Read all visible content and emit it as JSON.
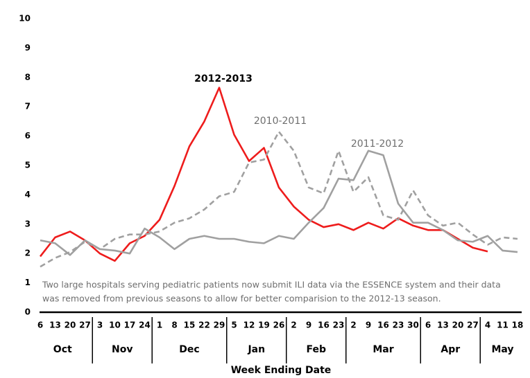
{
  "chart_data": {
    "type": "line",
    "x_label": "Week Ending Date",
    "categories": [
      "6",
      "13",
      "20",
      "27",
      "3",
      "10",
      "17",
      "24",
      "1",
      "8",
      "15",
      "22",
      "29",
      "5",
      "12",
      "19",
      "26",
      "2",
      "9",
      "16",
      "23",
      "2",
      "9",
      "16",
      "23",
      "30",
      "6",
      "13",
      "20",
      "27",
      "4",
      "11",
      "18"
    ],
    "months": [
      "Oct",
      "Nov",
      "Dec",
      "Jan",
      "Feb",
      "Mar",
      "Apr",
      "May"
    ],
    "ylim": [
      0,
      10
    ],
    "yticks": [
      0,
      1,
      2,
      3,
      4,
      5,
      6,
      7,
      8,
      9,
      10
    ],
    "grid": false,
    "series": [
      {
        "name": "2012-2013",
        "color": "#ee1c1c",
        "style": "solid",
        "values": [
          1.9,
          2.55,
          2.75,
          2.45,
          2.0,
          1.75,
          2.35,
          2.6,
          3.15,
          4.3,
          5.65,
          6.5,
          7.65,
          6.05,
          5.15,
          5.6,
          4.25,
          3.6,
          3.15,
          2.9,
          3.0,
          2.8,
          3.05,
          2.85,
          3.2,
          2.95,
          2.8,
          2.8,
          2.5,
          2.2,
          2.07,
          null,
          null
        ]
      },
      {
        "name": "2010-2011",
        "color": "#a0a0a0",
        "style": "dashed",
        "values": [
          1.55,
          1.85,
          2.05,
          2.4,
          2.15,
          2.5,
          2.65,
          2.65,
          2.75,
          3.05,
          3.2,
          3.5,
          3.95,
          4.1,
          5.1,
          5.2,
          6.15,
          5.5,
          4.25,
          4.05,
          5.5,
          4.1,
          4.6,
          3.3,
          3.15,
          4.15,
          3.3,
          2.95,
          3.05,
          2.65,
          2.3,
          2.55,
          2.5
        ]
      },
      {
        "name": "2011-2012",
        "color": "#a0a0a0",
        "style": "solid",
        "values": [
          2.45,
          2.35,
          1.95,
          2.45,
          2.15,
          2.1,
          2.0,
          2.85,
          2.55,
          2.15,
          2.5,
          2.6,
          2.5,
          2.5,
          2.4,
          2.35,
          2.6,
          2.5,
          3.05,
          3.55,
          4.55,
          4.5,
          5.5,
          5.35,
          3.7,
          3.05,
          3.05,
          2.8,
          2.45,
          2.4,
          2.6,
          2.1,
          2.05
        ]
      }
    ],
    "note": [
      "Two large hospitals serving pediatric patients now submit ILI data via the ESSENCE system and their data",
      "was removed  from previous seasons to allow for better comparision to the 2012-13 season."
    ]
  }
}
